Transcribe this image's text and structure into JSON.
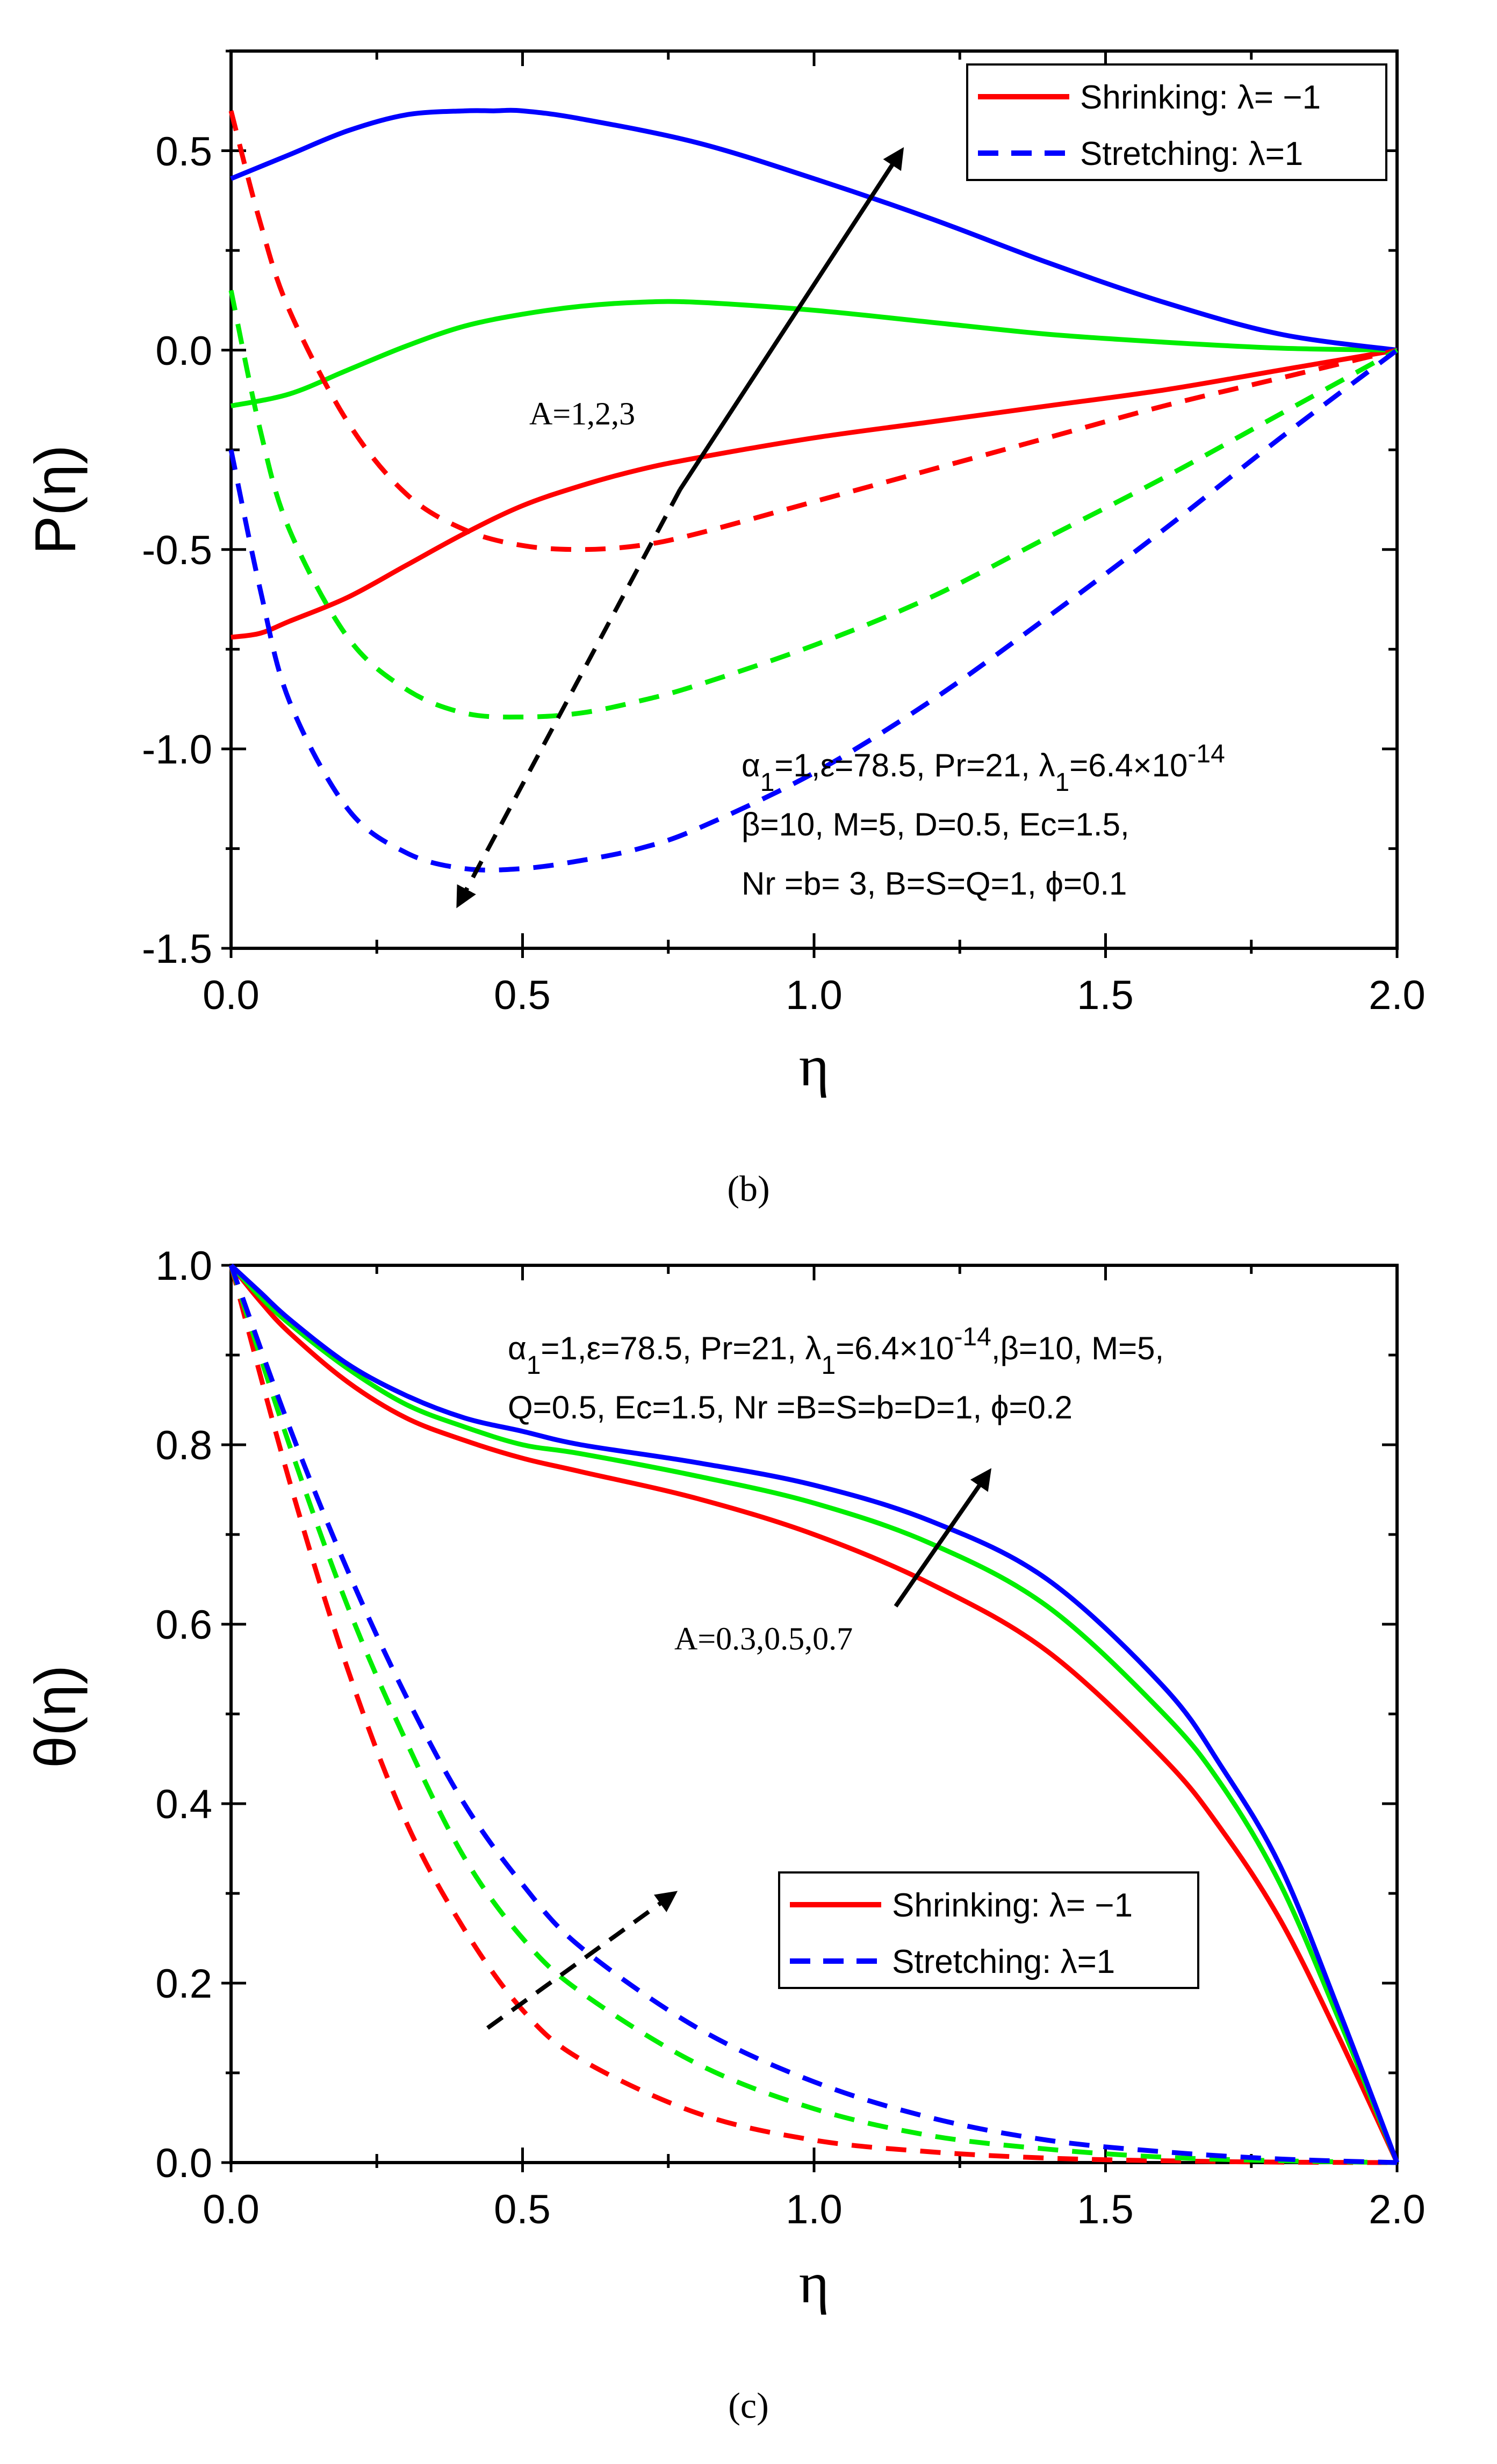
{
  "chart_data": [
    {
      "id": "b",
      "type": "line",
      "caption": "(b)",
      "xlabel": "η",
      "ylabel": "P(η)",
      "xlim": [
        0.0,
        2.0
      ],
      "ylim": [
        -1.5,
        0.75
      ],
      "xticks": [
        "0.0",
        "0.5",
        "1.0",
        "1.5",
        "2.0"
      ],
      "yticks": [
        "0.5",
        "0.0",
        "-0.5",
        "-1.0",
        "-1.5"
      ],
      "ytick_values": [
        0.5,
        0.0,
        -0.5,
        -1.0,
        -1.5
      ],
      "legend": {
        "position": "top-right",
        "entries": [
          {
            "label": "Shrinking: λ= −1",
            "style": "solid",
            "color": "#ff0000"
          },
          {
            "label": "Stretching: λ=1",
            "style": "dashed",
            "color": "#0000ff"
          }
        ]
      },
      "annotations": {
        "arrow_label": "A=1,2,3",
        "params": [
          {
            "parts": [
              [
                "α",
                ""
              ],
              [
                "1",
                "sub"
              ],
              [
                "=1,ε=78.5, Pr=21, λ",
                ""
              ],
              [
                "1",
                "sub"
              ],
              [
                "=6.4×10",
                ""
              ],
              [
                "-14",
                "sup"
              ]
            ]
          },
          {
            "parts": [
              [
                "β=10, M=5, D=0.5, Ec=1.5,",
                ""
              ]
            ]
          },
          {
            "parts": [
              [
                "Nr =b= 3, B=S=Q=1, ϕ=0.1",
                ""
              ]
            ]
          }
        ]
      },
      "series": [
        {
          "name": "Shrinking A=1",
          "style": "solid",
          "color": "#ff0000",
          "x": [
            0.0,
            0.05,
            0.1,
            0.2,
            0.3,
            0.4,
            0.5,
            0.6,
            0.7,
            0.8,
            1.0,
            1.2,
            1.4,
            1.6,
            1.8,
            2.0
          ],
          "y": [
            -0.72,
            -0.71,
            -0.68,
            -0.62,
            -0.54,
            -0.46,
            -0.39,
            -0.34,
            -0.3,
            -0.27,
            -0.22,
            -0.18,
            -0.14,
            -0.1,
            -0.05,
            0.0
          ]
        },
        {
          "name": "Shrinking A=2",
          "style": "solid",
          "color": "#00ee00",
          "x": [
            0.0,
            0.1,
            0.2,
            0.3,
            0.4,
            0.5,
            0.6,
            0.7,
            0.8,
            1.0,
            1.2,
            1.4,
            1.6,
            1.8,
            2.0
          ],
          "y": [
            -0.14,
            -0.11,
            -0.05,
            0.01,
            0.06,
            0.09,
            0.11,
            0.12,
            0.12,
            0.1,
            0.07,
            0.04,
            0.02,
            0.005,
            0.0
          ]
        },
        {
          "name": "Shrinking A=3",
          "style": "solid",
          "color": "#0000ff",
          "x": [
            0.0,
            0.1,
            0.2,
            0.3,
            0.4,
            0.45,
            0.5,
            0.6,
            0.8,
            1.0,
            1.2,
            1.4,
            1.6,
            1.8,
            2.0
          ],
          "y": [
            0.43,
            0.49,
            0.55,
            0.59,
            0.6,
            0.6,
            0.6,
            0.58,
            0.52,
            0.43,
            0.33,
            0.22,
            0.12,
            0.04,
            0.0
          ]
        },
        {
          "name": "Stretching A=1",
          "style": "dashed",
          "color": "#ff0000",
          "x": [
            0.0,
            0.05,
            0.1,
            0.2,
            0.3,
            0.4,
            0.5,
            0.6,
            0.7,
            0.8,
            1.0,
            1.2,
            1.4,
            1.6,
            1.8,
            2.0
          ],
          "y": [
            0.6,
            0.32,
            0.1,
            -0.18,
            -0.36,
            -0.45,
            -0.49,
            -0.5,
            -0.49,
            -0.46,
            -0.38,
            -0.3,
            -0.22,
            -0.14,
            -0.07,
            0.0
          ]
        },
        {
          "name": "Stretching A=2",
          "style": "dashed",
          "color": "#00ee00",
          "x": [
            0.0,
            0.05,
            0.1,
            0.2,
            0.3,
            0.4,
            0.5,
            0.6,
            0.7,
            0.8,
            1.0,
            1.2,
            1.4,
            1.6,
            1.8,
            2.0
          ],
          "y": [
            0.15,
            -0.2,
            -0.45,
            -0.72,
            -0.85,
            -0.91,
            -0.92,
            -0.91,
            -0.88,
            -0.84,
            -0.74,
            -0.62,
            -0.47,
            -0.32,
            -0.16,
            0.0
          ]
        },
        {
          "name": "Stretching A=3",
          "style": "dashed",
          "color": "#0000ff",
          "x": [
            0.0,
            0.05,
            0.1,
            0.2,
            0.3,
            0.4,
            0.5,
            0.6,
            0.7,
            0.8,
            1.0,
            1.2,
            1.4,
            1.6,
            1.8,
            2.0
          ],
          "y": [
            -0.25,
            -0.6,
            -0.88,
            -1.15,
            -1.26,
            -1.3,
            -1.3,
            -1.28,
            -1.25,
            -1.2,
            -1.06,
            -0.88,
            -0.67,
            -0.45,
            -0.22,
            0.0
          ]
        }
      ],
      "arrows": [
        {
          "style": "solid",
          "from": [
            0.77,
            -0.35
          ],
          "to": [
            1.15,
            0.5
          ]
        },
        {
          "style": "dashed",
          "from": [
            0.77,
            -0.35
          ],
          "to": [
            0.39,
            -1.39
          ]
        }
      ]
    },
    {
      "id": "c",
      "type": "line",
      "caption": "(c)",
      "xlabel": "η",
      "ylabel": "θ(η)",
      "xlim": [
        0.0,
        2.0
      ],
      "ylim": [
        0.0,
        1.0
      ],
      "xticks": [
        "0.0",
        "0.5",
        "1.0",
        "1.5",
        "2.0"
      ],
      "yticks": [
        "1.0",
        "0.8",
        "0.6",
        "0.4",
        "0.2",
        "0.0"
      ],
      "ytick_values": [
        1.0,
        0.8,
        0.6,
        0.4,
        0.2,
        0.0
      ],
      "legend": {
        "position": "lower-right",
        "entries": [
          {
            "label": "Shrinking: λ= −1",
            "style": "solid",
            "color": "#ff0000"
          },
          {
            "label": "Stretching: λ=1",
            "style": "dashed",
            "color": "#0000ff"
          }
        ]
      },
      "annotations": {
        "arrow_label": "A=0.3,0.5,0.7",
        "params": [
          {
            "parts": [
              [
                "α",
                ""
              ],
              [
                "1",
                "sub"
              ],
              [
                "=1,ε=78.5, Pr=21, λ",
                ""
              ],
              [
                "1",
                "sub"
              ],
              [
                "=6.4×10",
                ""
              ],
              [
                "-14",
                "sup"
              ],
              [
                ",β=10, M=5,",
                ""
              ]
            ]
          },
          {
            "parts": [
              [
                "Q=0.5, Ec=1.5, Nr =B=S=b=D=1, ϕ=0.2",
                ""
              ]
            ]
          }
        ]
      },
      "series": [
        {
          "name": "Shrinking A=0.3",
          "style": "solid",
          "color": "#ff0000",
          "x": [
            0.0,
            0.05,
            0.1,
            0.2,
            0.3,
            0.4,
            0.5,
            0.6,
            0.8,
            1.0,
            1.2,
            1.4,
            1.6,
            1.7,
            1.8,
            1.9,
            2.0
          ],
          "y": [
            1.0,
            0.96,
            0.925,
            0.87,
            0.83,
            0.805,
            0.785,
            0.77,
            0.74,
            0.7,
            0.645,
            0.57,
            0.45,
            0.37,
            0.27,
            0.14,
            0.0
          ]
        },
        {
          "name": "Shrinking A=0.5",
          "style": "solid",
          "color": "#00ee00",
          "x": [
            0.0,
            0.05,
            0.1,
            0.2,
            0.3,
            0.4,
            0.5,
            0.6,
            0.8,
            1.0,
            1.2,
            1.4,
            1.6,
            1.7,
            1.8,
            1.9,
            2.0
          ],
          "y": [
            1.0,
            0.965,
            0.935,
            0.885,
            0.845,
            0.82,
            0.8,
            0.79,
            0.765,
            0.735,
            0.69,
            0.62,
            0.5,
            0.42,
            0.31,
            0.16,
            0.0
          ]
        },
        {
          "name": "Shrinking A=0.7",
          "style": "solid",
          "color": "#0000ff",
          "x": [
            0.0,
            0.05,
            0.1,
            0.2,
            0.3,
            0.4,
            0.5,
            0.6,
            0.8,
            1.0,
            1.2,
            1.4,
            1.6,
            1.7,
            1.8,
            1.9,
            2.0
          ],
          "y": [
            1.0,
            0.97,
            0.94,
            0.89,
            0.855,
            0.83,
            0.815,
            0.8,
            0.78,
            0.755,
            0.715,
            0.65,
            0.53,
            0.44,
            0.33,
            0.17,
            0.0
          ]
        },
        {
          "name": "Stretching A=0.3",
          "style": "dashed",
          "color": "#ff0000",
          "x": [
            0.0,
            0.1,
            0.2,
            0.3,
            0.4,
            0.5,
            0.6,
            0.8,
            1.0,
            1.2,
            1.4,
            1.6,
            1.8,
            2.0
          ],
          "y": [
            1.0,
            0.76,
            0.55,
            0.38,
            0.26,
            0.17,
            0.115,
            0.055,
            0.025,
            0.012,
            0.005,
            0.002,
            0.0005,
            0.0
          ]
        },
        {
          "name": "Stretching A=0.5",
          "style": "dashed",
          "color": "#00ee00",
          "x": [
            0.0,
            0.1,
            0.2,
            0.3,
            0.4,
            0.5,
            0.6,
            0.8,
            1.0,
            1.2,
            1.4,
            1.6,
            1.8,
            2.0
          ],
          "y": [
            1.0,
            0.8,
            0.62,
            0.47,
            0.34,
            0.25,
            0.19,
            0.11,
            0.06,
            0.03,
            0.015,
            0.006,
            0.002,
            0.0
          ]
        },
        {
          "name": "Stretching A=0.7",
          "style": "dashed",
          "color": "#0000ff",
          "x": [
            0.0,
            0.1,
            0.2,
            0.3,
            0.4,
            0.5,
            0.6,
            0.8,
            1.0,
            1.2,
            1.4,
            1.6,
            1.8,
            2.0
          ],
          "y": [
            1.0,
            0.82,
            0.66,
            0.52,
            0.4,
            0.31,
            0.24,
            0.15,
            0.09,
            0.05,
            0.025,
            0.012,
            0.004,
            0.0
          ]
        }
      ],
      "arrows": [
        {
          "style": "solid",
          "from": [
            1.14,
            0.62
          ],
          "to": [
            1.3,
            0.77
          ]
        },
        {
          "style": "dashed",
          "from": [
            0.44,
            0.15
          ],
          "to": [
            0.76,
            0.3
          ]
        }
      ]
    }
  ]
}
